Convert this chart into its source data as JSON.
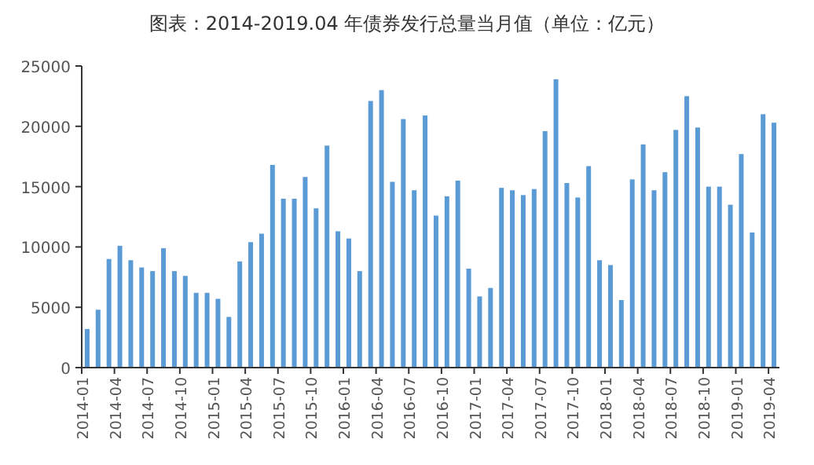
{
  "chart_data": {
    "type": "bar",
    "title": "图表：2014-2019.04 年债券发行总量当月值（单位：亿元）",
    "categories": [
      "2014-01",
      null,
      null,
      "2014-04",
      null,
      null,
      "2014-07",
      null,
      null,
      "2014-10",
      null,
      null,
      "2015-01",
      null,
      null,
      "2015-04",
      null,
      null,
      "2015-07",
      null,
      null,
      "2015-10",
      null,
      null,
      "2016-01",
      null,
      null,
      "2016-04",
      null,
      null,
      "2016-07",
      null,
      null,
      "2016-10",
      null,
      null,
      "2017-01",
      null,
      null,
      "2017-04",
      null,
      null,
      "2017-07",
      null,
      null,
      "2017-10",
      null,
      null,
      "2018-01",
      null,
      null,
      "2018-04",
      null,
      null,
      "2018-07",
      null,
      null,
      "2018-10",
      null,
      null,
      "2019-01",
      null,
      null,
      "2019-04"
    ],
    "values": [
      3200,
      4800,
      9000,
      10100,
      8900,
      8300,
      8000,
      9900,
      8000,
      7600,
      6200,
      6200,
      5700,
      4200,
      8800,
      10400,
      11100,
      16800,
      14000,
      14000,
      15800,
      13200,
      18400,
      11300,
      10700,
      8000,
      22100,
      23000,
      15400,
      20600,
      14700,
      20900,
      12600,
      14200,
      15500,
      8200,
      5900,
      6600,
      14900,
      14700,
      14300,
      14800,
      19600,
      23900,
      15300,
      14100,
      16700,
      8900,
      8500,
      5600,
      15600,
      18500,
      14700,
      16200,
      19700,
      22500,
      19900,
      15000,
      15000,
      13500,
      17700,
      11200,
      21000,
      20300
    ],
    "color": "#5b9bd5",
    "ylim": [
      0,
      25000
    ],
    "yticks": [
      0,
      5000,
      10000,
      15000,
      20000,
      25000
    ],
    "grid": false
  }
}
